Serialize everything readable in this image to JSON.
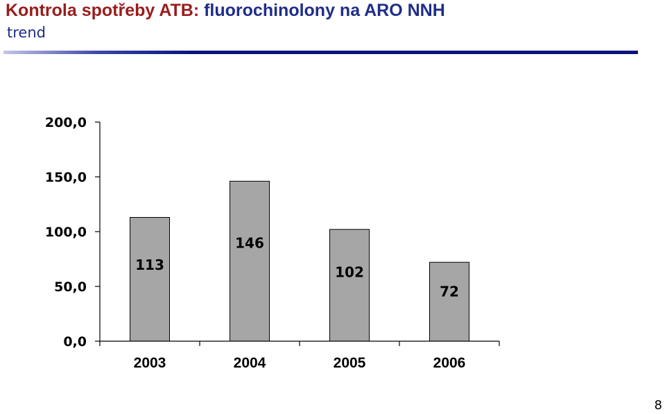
{
  "slide": {
    "title_part1": "Kontrola spotřeby ATB: ",
    "title_part2": "fluorochinolony na ARO NNH",
    "subtitle": "trend",
    "page_number": "8"
  },
  "colors": {
    "title_red": "#9a1c1c",
    "title_blue": "#1f2d8a",
    "bar_fill": "#a6a6a6",
    "axis": "#000000"
  },
  "chart_data": {
    "type": "bar",
    "title": "",
    "xlabel": "",
    "ylabel": "",
    "categories": [
      "2003",
      "2004",
      "2005",
      "2006"
    ],
    "values": [
      113,
      146,
      102,
      72
    ],
    "data_labels": [
      "113",
      "146",
      "102",
      "72"
    ],
    "ylim": [
      0,
      200
    ],
    "yticks": [
      0,
      50,
      100,
      150,
      200
    ],
    "ytick_labels": [
      "0,0",
      "50,0",
      "100,0",
      "150,0",
      "200,0"
    ],
    "grid": false,
    "legend": "none"
  }
}
